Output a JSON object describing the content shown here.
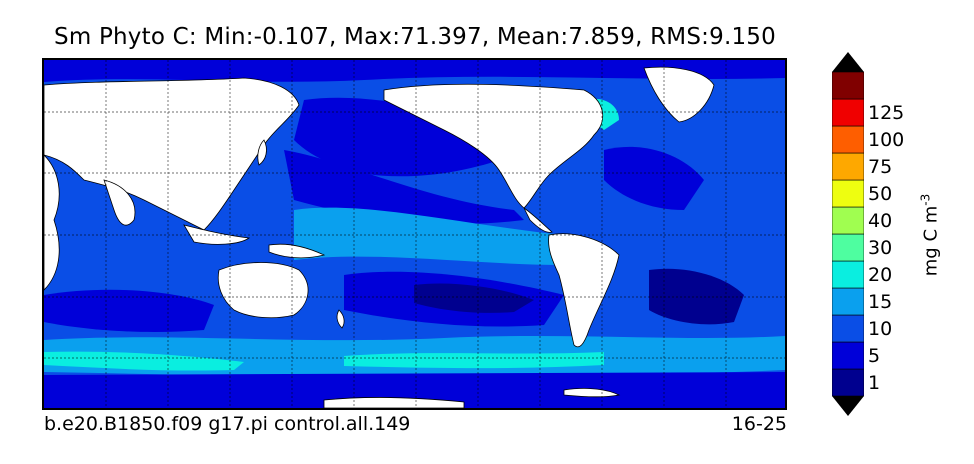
{
  "title": "Sm Phyto C: Min:-0.107, Max:71.397, Mean:7.859, RMS:9.150",
  "footer_left": "b.e20.B1850.f09 g17.pi control.all.149",
  "footer_right": "16-25",
  "colorbar": {
    "units_base": "mg C m",
    "units_exp": "-3",
    "tick_labels": [
      "1",
      "5",
      "10",
      "15",
      "20",
      "30",
      "40",
      "50",
      "75",
      "100",
      "125"
    ],
    "colors": [
      "#00008f",
      "#0000d9",
      "#0a4ee6",
      "#0aa0ee",
      "#0aeee0",
      "#4efea0",
      "#a0fe50",
      "#eefe10",
      "#fea800",
      "#fe5e00",
      "#f00000",
      "#800000"
    ],
    "under_color": "#000000",
    "over_color": "#000000"
  },
  "legend": {
    "ocean_colors": {
      "deep": "#00008f",
      "low": "#0000d9",
      "mid": "#0a4ee6",
      "mid_high": "#0aa0ee",
      "high": "#0aeee0",
      "very_high": "#4efea0",
      "peak": "#a0fe50"
    },
    "land_color": "#ffffff"
  }
}
